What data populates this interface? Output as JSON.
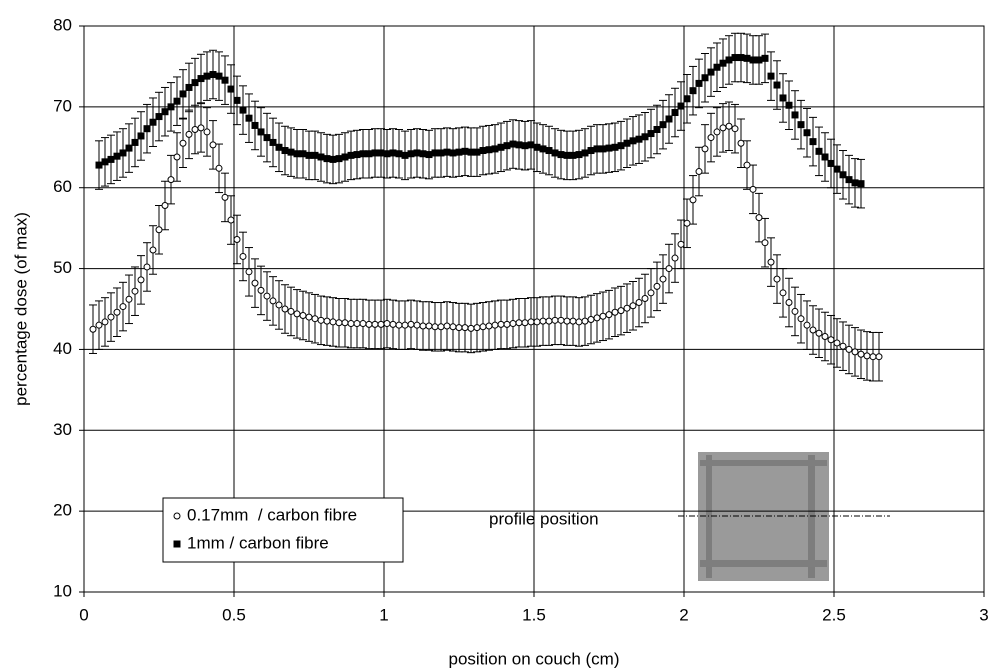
{
  "chart_data": {
    "type": "scatter",
    "x_label": "position on couch (cm)",
    "y_label": "percentage dose (of max)",
    "xlim": [
      0,
      3
    ],
    "xticks": [
      0,
      0.5,
      1,
      1.5,
      2,
      2.5,
      3
    ],
    "ylim": [
      10,
      80
    ],
    "yticks": [
      10,
      20,
      30,
      40,
      50,
      60,
      70,
      80
    ],
    "grid": true,
    "legend": "lower left",
    "annotation": "profile position",
    "series": [
      {
        "name": "0.17mm  / carbon fibre",
        "color": "#000000",
        "marker": "open-circle",
        "error": 3,
        "x": [
          0.03,
          0.05,
          0.07,
          0.09,
          0.11,
          0.13,
          0.15,
          0.17,
          0.19,
          0.21,
          0.23,
          0.25,
          0.27,
          0.29,
          0.31,
          0.33,
          0.35,
          0.37,
          0.39,
          0.41,
          0.43,
          0.45,
          0.47,
          0.49,
          0.51,
          0.53,
          0.55,
          0.57,
          0.59,
          0.61,
          0.63,
          0.65,
          0.67,
          0.69,
          0.71,
          0.73,
          0.75,
          0.77,
          0.79,
          0.81,
          0.83,
          0.85,
          0.87,
          0.89,
          0.91,
          0.93,
          0.95,
          0.97,
          0.99,
          1.01,
          1.03,
          1.05,
          1.07,
          1.09,
          1.11,
          1.13,
          1.15,
          1.17,
          1.19,
          1.21,
          1.23,
          1.25,
          1.27,
          1.29,
          1.31,
          1.33,
          1.35,
          1.37,
          1.39,
          1.41,
          1.43,
          1.45,
          1.47,
          1.49,
          1.51,
          1.53,
          1.55,
          1.57,
          1.59,
          1.61,
          1.63,
          1.65,
          1.67,
          1.69,
          1.71,
          1.73,
          1.75,
          1.77,
          1.79,
          1.81,
          1.83,
          1.85,
          1.87,
          1.89,
          1.91,
          1.93,
          1.95,
          1.97,
          1.99,
          2.01,
          2.03,
          2.05,
          2.07,
          2.09,
          2.11,
          2.13,
          2.15,
          2.17,
          2.19,
          2.21,
          2.23,
          2.25,
          2.27,
          2.29,
          2.31,
          2.33,
          2.35,
          2.37,
          2.39,
          2.41,
          2.43,
          2.45,
          2.47,
          2.49,
          2.51,
          2.53,
          2.55,
          2.57,
          2.59,
          2.61,
          2.63,
          2.65
        ],
        "values": [
          42.5,
          43.0,
          43.4,
          44.0,
          44.6,
          45.3,
          46.2,
          47.2,
          48.6,
          50.2,
          52.3,
          54.8,
          57.8,
          61.0,
          63.8,
          65.5,
          66.6,
          67.2,
          67.4,
          66.9,
          65.3,
          62.4,
          58.8,
          56.0,
          53.6,
          51.5,
          49.6,
          48.2,
          47.3,
          46.6,
          46.0,
          45.5,
          45.0,
          44.7,
          44.4,
          44.2,
          44.0,
          43.8,
          43.6,
          43.5,
          43.4,
          43.3,
          43.3,
          43.2,
          43.2,
          43.2,
          43.1,
          43.1,
          43.1,
          43.2,
          43.1,
          43.0,
          43.0,
          43.1,
          43.0,
          42.9,
          42.9,
          42.8,
          42.8,
          42.9,
          42.8,
          42.7,
          42.7,
          42.6,
          42.7,
          42.8,
          42.9,
          43.0,
          43.1,
          43.1,
          43.2,
          43.3,
          43.3,
          43.4,
          43.4,
          43.5,
          43.5,
          43.6,
          43.6,
          43.5,
          43.5,
          43.4,
          43.5,
          43.7,
          43.9,
          44.1,
          44.3,
          44.6,
          44.8,
          45.1,
          45.4,
          45.8,
          46.3,
          47.0,
          47.8,
          48.7,
          50.0,
          51.3,
          53.0,
          55.6,
          58.5,
          62.0,
          64.8,
          66.2,
          66.9,
          67.4,
          67.6,
          67.3,
          65.5,
          62.8,
          59.8,
          56.3,
          53.2,
          50.8,
          48.7,
          47.0,
          45.8,
          44.7,
          43.8,
          43.0,
          42.4,
          42.0,
          41.6,
          41.2,
          40.8,
          40.4,
          40.0,
          39.7,
          39.4,
          39.2,
          39.1,
          39.1
        ]
      },
      {
        "name": "1mm / carbon fibre",
        "color": "#000000",
        "marker": "filled-square",
        "error": 3,
        "x": [
          0.05,
          0.07,
          0.09,
          0.11,
          0.13,
          0.15,
          0.17,
          0.19,
          0.21,
          0.23,
          0.25,
          0.27,
          0.29,
          0.31,
          0.33,
          0.35,
          0.37,
          0.39,
          0.41,
          0.43,
          0.45,
          0.47,
          0.49,
          0.51,
          0.53,
          0.55,
          0.57,
          0.59,
          0.61,
          0.63,
          0.65,
          0.67,
          0.69,
          0.71,
          0.73,
          0.75,
          0.77,
          0.79,
          0.81,
          0.83,
          0.85,
          0.87,
          0.89,
          0.91,
          0.93,
          0.95,
          0.97,
          0.99,
          1.01,
          1.03,
          1.05,
          1.07,
          1.09,
          1.11,
          1.13,
          1.15,
          1.17,
          1.19,
          1.21,
          1.23,
          1.25,
          1.27,
          1.29,
          1.31,
          1.33,
          1.35,
          1.37,
          1.39,
          1.41,
          1.43,
          1.45,
          1.47,
          1.49,
          1.51,
          1.53,
          1.55,
          1.57,
          1.59,
          1.61,
          1.63,
          1.65,
          1.67,
          1.69,
          1.71,
          1.73,
          1.75,
          1.77,
          1.79,
          1.81,
          1.83,
          1.85,
          1.87,
          1.89,
          1.91,
          1.93,
          1.95,
          1.97,
          1.99,
          2.01,
          2.03,
          2.05,
          2.07,
          2.09,
          2.11,
          2.13,
          2.15,
          2.17,
          2.19,
          2.21,
          2.23,
          2.25,
          2.27,
          2.29,
          2.31,
          2.33,
          2.35,
          2.37,
          2.39,
          2.41,
          2.43,
          2.45,
          2.47,
          2.49,
          2.51,
          2.53,
          2.55,
          2.57,
          2.59
        ],
        "values": [
          62.8,
          63.2,
          63.5,
          63.9,
          64.3,
          64.9,
          65.6,
          66.4,
          67.3,
          68.1,
          68.8,
          69.4,
          70.0,
          70.7,
          71.6,
          72.4,
          73.0,
          73.5,
          73.8,
          74.0,
          73.8,
          73.3,
          72.2,
          70.8,
          69.6,
          68.6,
          67.7,
          66.9,
          66.2,
          65.6,
          65.0,
          64.6,
          64.4,
          64.2,
          64.2,
          64.0,
          64.0,
          63.8,
          63.6,
          63.5,
          63.6,
          63.8,
          64.0,
          64.1,
          64.2,
          64.2,
          64.3,
          64.3,
          64.2,
          64.3,
          64.2,
          64.0,
          64.2,
          64.3,
          64.2,
          64.1,
          64.3,
          64.3,
          64.4,
          64.3,
          64.4,
          64.5,
          64.4,
          64.4,
          64.6,
          64.7,
          64.8,
          65.0,
          65.2,
          65.4,
          65.3,
          65.2,
          65.3,
          65.0,
          64.8,
          64.6,
          64.3,
          64.1,
          64.0,
          64.0,
          64.1,
          64.3,
          64.6,
          64.8,
          64.8,
          64.9,
          65.0,
          65.2,
          65.5,
          65.8,
          66.0,
          66.3,
          66.7,
          67.2,
          67.8,
          68.5,
          69.3,
          70.1,
          71.0,
          72.0,
          72.9,
          73.6,
          74.3,
          74.9,
          75.4,
          75.8,
          76.1,
          76.1,
          76.0,
          75.8,
          75.8,
          76.0,
          73.8,
          72.7,
          71.1,
          70.2,
          69.0,
          67.8,
          66.8,
          65.7,
          64.5,
          63.8,
          63.0,
          62.3,
          61.6,
          61.0,
          60.6,
          60.5
        ]
      }
    ]
  }
}
